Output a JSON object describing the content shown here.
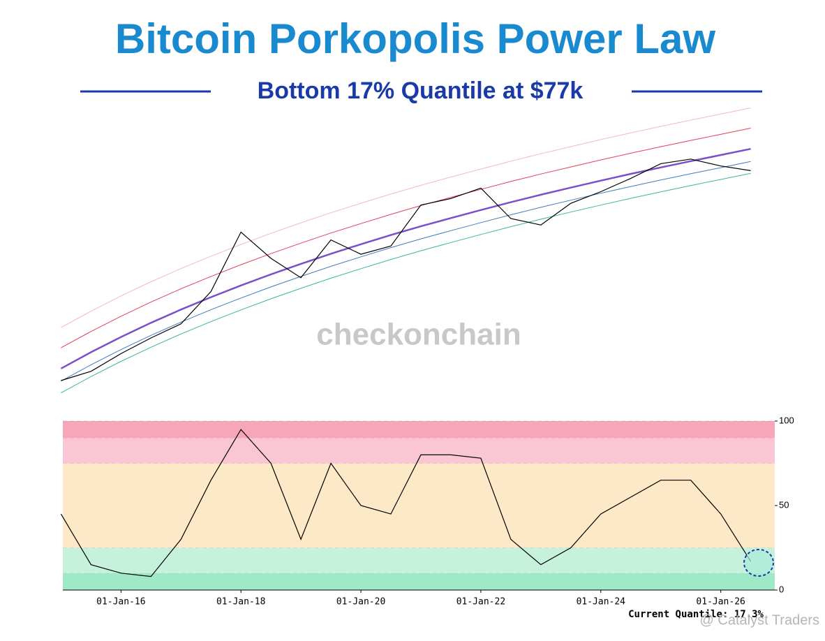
{
  "chart_data": [
    {
      "type": "line",
      "title": "Bitcoin Porkopolis Power Law",
      "subtitle": "Bottom 17% Quantile at $77k",
      "watermark": "checkonchain",
      "log_scale": true,
      "xlim": [
        2015.03,
        2026.9
      ],
      "ylim": [
        100,
        500000
      ],
      "x": [
        2015.0,
        2015.5,
        2016.0,
        2016.5,
        2017.0,
        2017.5,
        2018.0,
        2018.5,
        2019.0,
        2019.5,
        2020.0,
        2020.5,
        2021.0,
        2021.5,
        2022.0,
        2022.5,
        2023.0,
        2023.5,
        2024.0,
        2024.5,
        2025.0,
        2025.5,
        2026.0,
        2026.5
      ],
      "series": [
        {
          "color": "#f4b6c8",
          "width": 1,
          "values": [
            899,
            1430,
            2205,
            3296,
            4800,
            6816,
            9504,
            13024,
            17536,
            23360,
            30560,
            39680,
            50880,
            64320,
            80640,
            100800,
            124480,
            152320,
            185920,
            224960,
            270400,
            323200,
            384000,
            457600
          ]
        },
        {
          "color": "#e0405a",
          "width": 1,
          "values": [
            506,
            805,
            1240,
            1854,
            2700,
            3834,
            5346,
            7326,
            9864,
            13140,
            17190,
            22320,
            28620,
            36180,
            45360,
            56700,
            70020,
            85680,
            104580,
            126540,
            152100,
            181800,
            216000,
            257400
          ]
        },
        {
          "color": "#7b4fc9",
          "width": 2.5,
          "values": [
            281,
            447,
            689,
            1030,
            1500,
            2130,
            2970,
            4070,
            5480,
            7300,
            9550,
            12400,
            15900,
            20100,
            25200,
            31500,
            38900,
            47600,
            58100,
            70300,
            84500,
            101000,
            120000,
            143000
          ]
        },
        {
          "color": "#3a7ec0",
          "width": 1,
          "values": [
            197,
            313,
            482,
            721,
            1050,
            1491,
            2079,
            2849,
            3836,
            5110,
            6685,
            8680,
            11130,
            14070,
            17640,
            22050,
            27230,
            33320,
            40670,
            49210,
            59150,
            70700,
            84000,
            100100
          ]
        },
        {
          "color": "#3ab79a",
          "width": 1,
          "values": [
            141,
            224,
            345,
            515,
            750,
            1065,
            1485,
            2035,
            2740,
            3650,
            4775,
            6200,
            7950,
            10050,
            12600,
            15750,
            19450,
            23800,
            29050,
            35150,
            42250,
            50500,
            60000,
            71500
          ]
        },
        {
          "color": "#000000",
          "width": 1.2,
          "values": [
            200,
            260,
            430,
            670,
            1000,
            2500,
            13500,
            6400,
            3700,
            10800,
            7200,
            9100,
            29000,
            35000,
            47000,
            19800,
            16500,
            30500,
            42500,
            62000,
            94000,
            107000,
            88000,
            77000
          ]
        }
      ]
    },
    {
      "type": "line",
      "annotation": "Current Quantile: 17.3%",
      "color": "#000000",
      "xlim": [
        2015.03,
        2026.9
      ],
      "ylim": [
        0,
        100
      ],
      "yticks": [
        0,
        50,
        100
      ],
      "xticks": [
        {
          "value": 2016,
          "label": "01-Jan-16"
        },
        {
          "value": 2018,
          "label": "01-Jan-18"
        },
        {
          "value": 2020,
          "label": "01-Jan-20"
        },
        {
          "value": 2022,
          "label": "01-Jan-22"
        },
        {
          "value": 2024,
          "label": "01-Jan-24"
        },
        {
          "value": 2026,
          "label": "01-Jan-26"
        }
      ],
      "zones": [
        {
          "from": 0,
          "to": 10,
          "color": "#9fe8c8"
        },
        {
          "from": 10,
          "to": 25,
          "color": "#c6f2dd"
        },
        {
          "from": 25,
          "to": 75,
          "color": "#fde8c8"
        },
        {
          "from": 75,
          "to": 90,
          "color": "#fbc6d4"
        },
        {
          "from": 90,
          "to": 100,
          "color": "#f7a5b8"
        }
      ],
      "x": [
        2015.0,
        2015.5,
        2016.0,
        2016.5,
        2017.0,
        2017.5,
        2018.0,
        2018.5,
        2019.0,
        2019.5,
        2020.0,
        2020.5,
        2021.0,
        2021.5,
        2022.0,
        2022.5,
        2023.0,
        2023.5,
        2024.0,
        2024.5,
        2025.0,
        2025.5,
        2026.0,
        2026.5
      ],
      "values": [
        45,
        15,
        10,
        8,
        30,
        65,
        95,
        75,
        30,
        75,
        50,
        45,
        80,
        80,
        78,
        30,
        15,
        25,
        45,
        55,
        65,
        65,
        45,
        17
      ]
    }
  ],
  "credit": "@ Catalyst Traders"
}
